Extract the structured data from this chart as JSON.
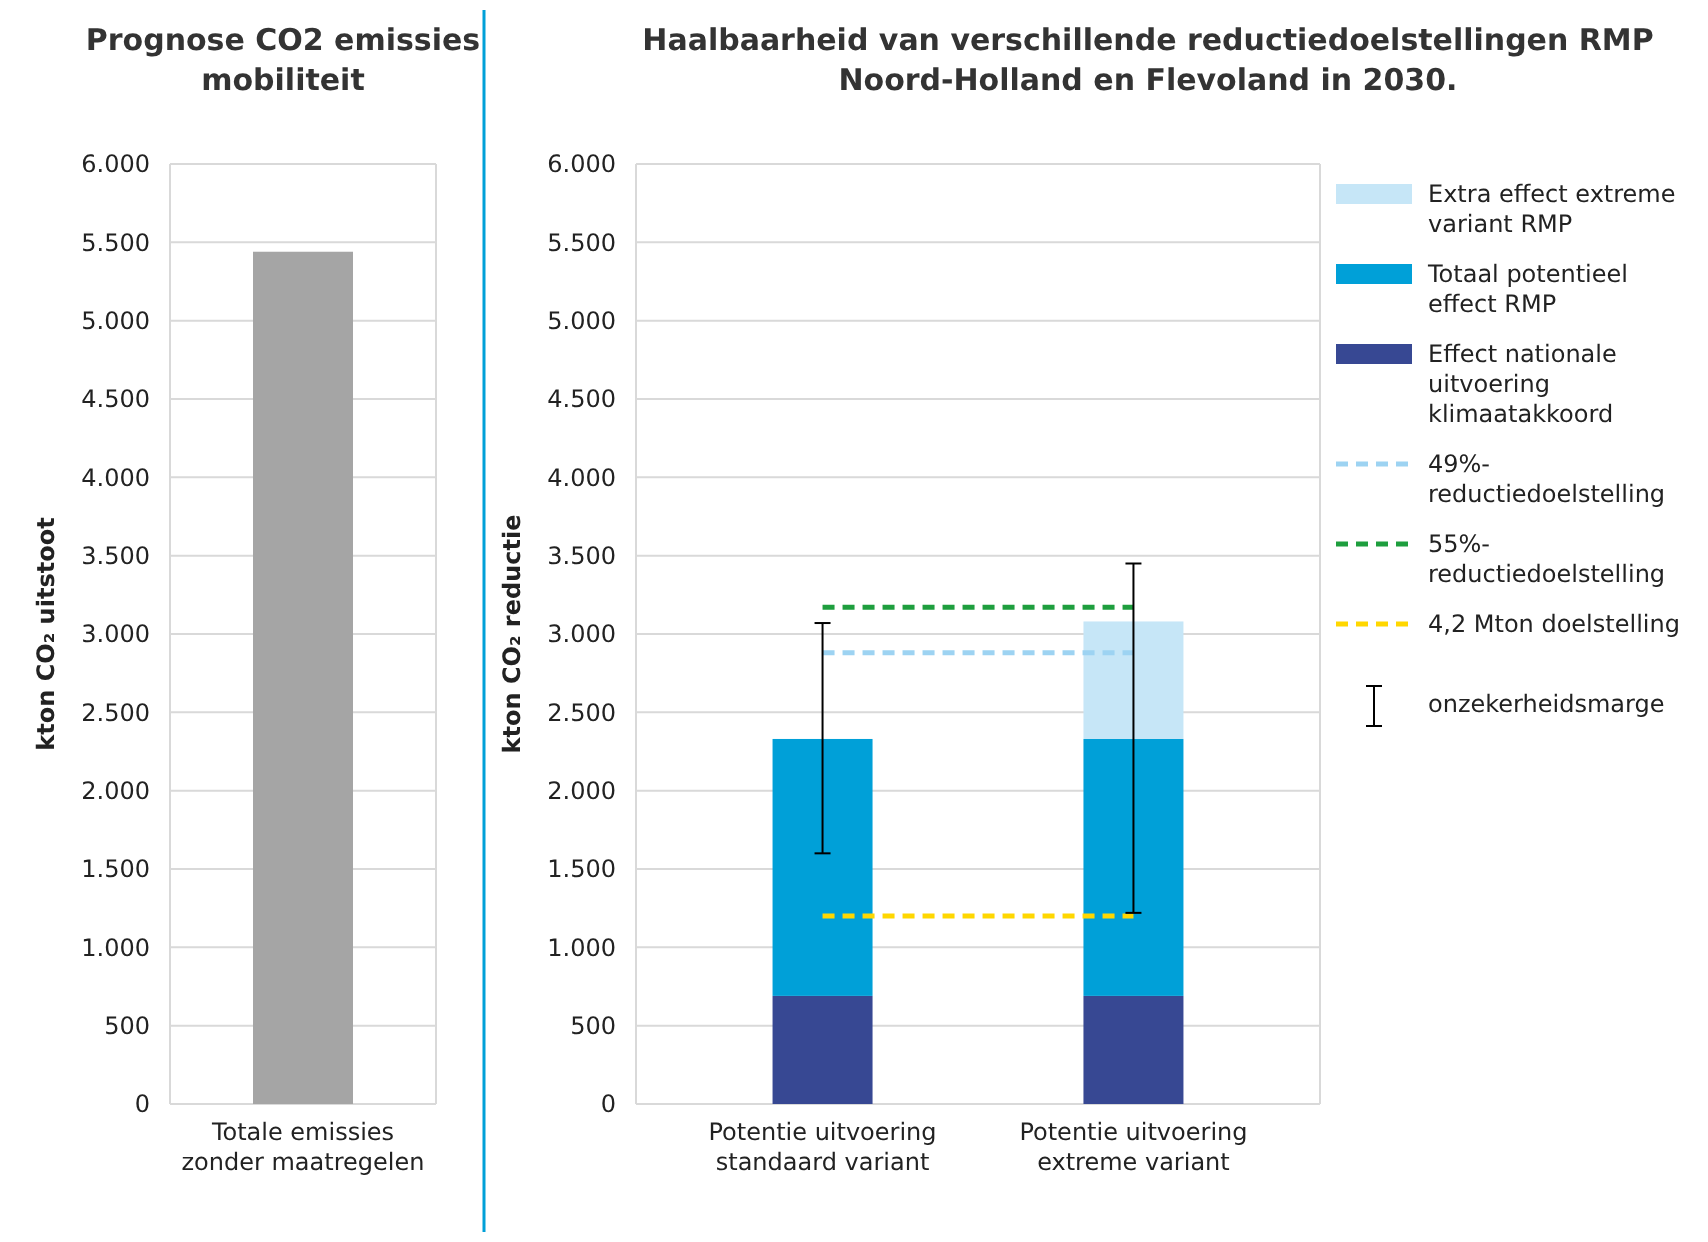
{
  "chart_data": [
    {
      "type": "bar",
      "title": "Prognose CO2 emissies mobiliteit",
      "ylabel": "kton CO₂ uitstoot",
      "categories": [
        "Totale emissies zonder maatregelen"
      ],
      "values": [
        5440
      ],
      "color": "#a5a5a5",
      "ylim": [
        0,
        6000
      ],
      "yticks": [
        {
          "value": 0,
          "label": "0"
        },
        {
          "value": 500,
          "label": "500"
        },
        {
          "value": 1000,
          "label": "1.000"
        },
        {
          "value": 1500,
          "label": "1.500"
        },
        {
          "value": 2000,
          "label": "2.000"
        },
        {
          "value": 2500,
          "label": "2.500"
        },
        {
          "value": 3000,
          "label": "3.000"
        },
        {
          "value": 3500,
          "label": "3.500"
        },
        {
          "value": 4000,
          "label": "4.000"
        },
        {
          "value": 4500,
          "label": "4.500"
        },
        {
          "value": 5000,
          "label": "5.000"
        },
        {
          "value": 5500,
          "label": "5.500"
        },
        {
          "value": 6000,
          "label": "6.000"
        }
      ],
      "grid": "y"
    },
    {
      "type": "bar",
      "title": "Haalbaarheid van verschillende reductiedoelstellingen RMP Noord-Holland en Flevoland in 2030.",
      "ylabel": "kton CO₂ reductie",
      "categories": [
        "Potentie uitvoering standaard variant",
        "Potentie uitvoering extreme variant"
      ],
      "stacked": true,
      "series": [
        {
          "name": "Effect nationale uitvoering klimaatakkoord",
          "color": "#374893",
          "values": [
            690,
            690
          ]
        },
        {
          "name": "Totaal potentieel effect RMP",
          "color": "#00a0d8",
          "values": [
            1640,
            1640
          ],
          "errors": [
            [
              1600,
              3070
            ],
            [
              1220,
              3450
            ]
          ]
        },
        {
          "name": "Extra effect extreme variant RMP",
          "color": "#c6e6f7",
          "values": [
            null,
            750
          ]
        }
      ],
      "ref_lines": [
        {
          "axis": "y",
          "value": 2880,
          "label": "49%-reductiedoelstelling",
          "color": "#9dd3f2",
          "line_style": "dashed"
        },
        {
          "axis": "y",
          "value": 3170,
          "label": "55%-reductiedoelstelling",
          "color": "#1e9e3e",
          "line_style": "dashed"
        },
        {
          "axis": "y",
          "value": 1200,
          "label": "4,2 Mton doelstelling",
          "color": "#ffd700",
          "line_style": "dashed"
        }
      ],
      "annotations": [
        "onzekerheidsmarge"
      ],
      "legend": "right",
      "ylim": [
        0,
        6000
      ],
      "yticks": [
        {
          "value": 0,
          "label": "0"
        },
        {
          "value": 500,
          "label": "500"
        },
        {
          "value": 1000,
          "label": "1.000"
        },
        {
          "value": 1500,
          "label": "1.500"
        },
        {
          "value": 2000,
          "label": "2.000"
        },
        {
          "value": 2500,
          "label": "2.500"
        },
        {
          "value": 3000,
          "label": "3.000"
        },
        {
          "value": 3500,
          "label": "3.500"
        },
        {
          "value": 4000,
          "label": "4.000"
        },
        {
          "value": 4500,
          "label": "4.500"
        },
        {
          "value": 5000,
          "label": "5.000"
        },
        {
          "value": 5500,
          "label": "5.500"
        },
        {
          "value": 6000,
          "label": "6.000"
        }
      ],
      "grid": "y"
    }
  ]
}
